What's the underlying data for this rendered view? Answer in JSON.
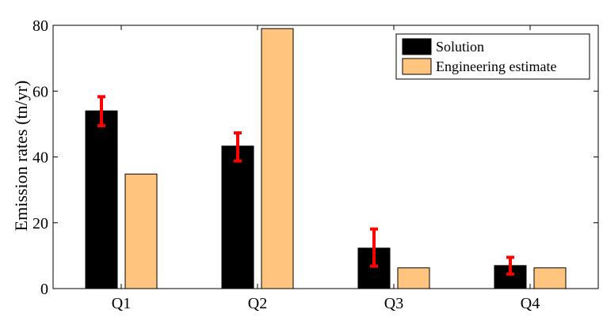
{
  "chart_data": {
    "type": "bar",
    "ylabel": "Emission rates (tn/yr)",
    "xlabel": "",
    "ylim": [
      0,
      80
    ],
    "yticks": [
      0,
      20,
      40,
      60,
      80
    ],
    "categories": [
      "Q1",
      "Q2",
      "Q3",
      "Q4"
    ],
    "series": [
      {
        "name": "Solution",
        "color": "#000000",
        "values": [
          54,
          43.3,
          12.3,
          7
        ],
        "error_low": [
          49.5,
          38.8,
          6.8,
          4.4
        ],
        "error_high": [
          58.3,
          47.3,
          18.1,
          9.5
        ]
      },
      {
        "name": "Engineering estimate",
        "color": "#FFC57F",
        "values": [
          34.8,
          79,
          6.3,
          6.3
        ]
      }
    ],
    "error_bar_color": "#FF0000",
    "legend_position": "top-right",
    "grid": false
  }
}
